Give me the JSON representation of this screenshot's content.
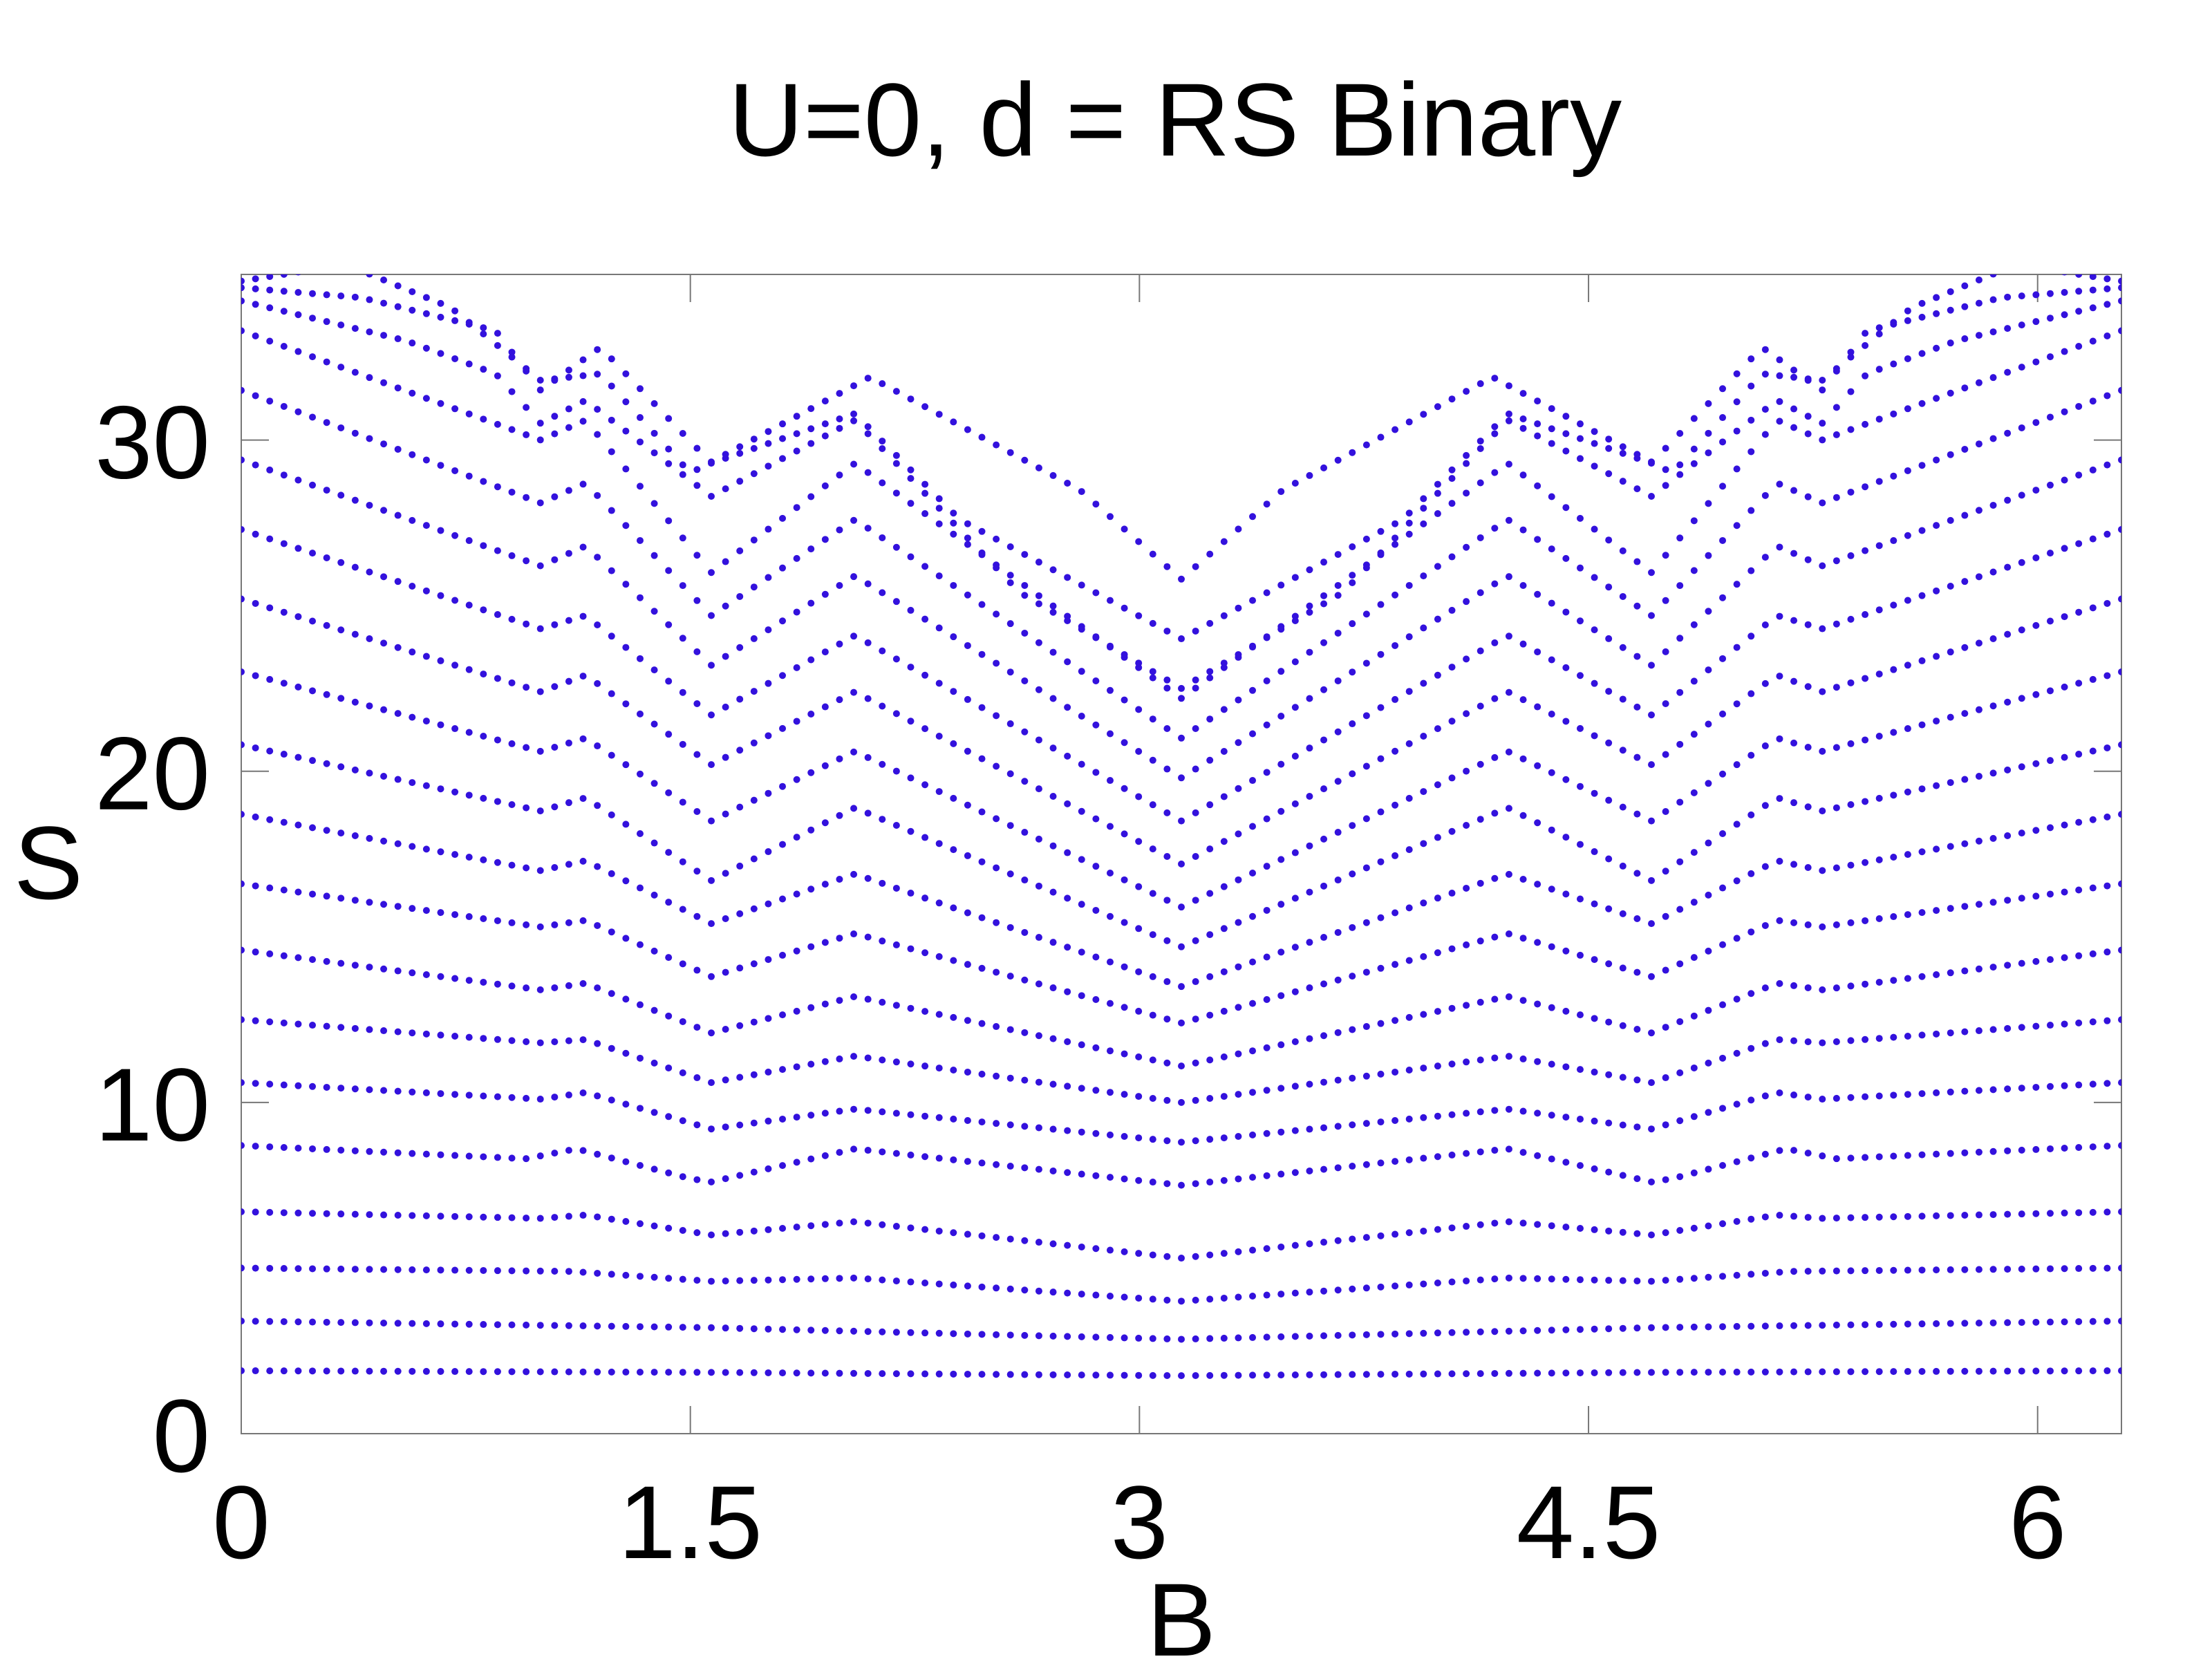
{
  "chart_data": {
    "type": "scatter",
    "title": "U=0, d = RS Binary",
    "xlabel": "B",
    "ylabel": "S",
    "xlim": [
      0,
      6.28
    ],
    "ylim": [
      0,
      35
    ],
    "xticks": [
      0,
      1.5,
      3,
      4.5,
      6
    ],
    "xtick_labels": [
      "0",
      "1.5",
      "3",
      "4.5",
      "6"
    ],
    "yticks": [
      0,
      10,
      20,
      30
    ],
    "ytick_labels": [
      "0",
      "10",
      "20",
      "30"
    ],
    "grid": false,
    "legend": "none",
    "marker_color": "#3311dd",
    "sampling": {
      "x_start": 0,
      "x_end": 6.28,
      "points": 133
    },
    "series": [
      {
        "profile": [
          [
            0,
            1.9
          ],
          [
            1.57,
            1.85
          ],
          [
            3.14,
            1.75
          ],
          [
            4.71,
            1.85
          ],
          [
            6.28,
            1.9
          ]
        ]
      },
      {
        "profile": [
          [
            0,
            3.4
          ],
          [
            1.57,
            3.2
          ],
          [
            3.14,
            2.85
          ],
          [
            4.71,
            3.2
          ],
          [
            6.28,
            3.4
          ]
        ]
      },
      {
        "profile": [
          [
            0,
            5.0
          ],
          [
            1.1,
            4.9
          ],
          [
            1.57,
            4.6
          ],
          [
            2.05,
            4.7
          ],
          [
            3.14,
            4.0
          ],
          [
            4.23,
            4.7
          ],
          [
            4.71,
            4.6
          ],
          [
            5.18,
            4.9
          ],
          [
            6.28,
            5.0
          ]
        ]
      },
      {
        "profile": [
          [
            0,
            6.7
          ],
          [
            1.0,
            6.5
          ],
          [
            1.15,
            6.6
          ],
          [
            1.57,
            6.0
          ],
          [
            2.05,
            6.4
          ],
          [
            3.14,
            5.3
          ],
          [
            4.23,
            6.4
          ],
          [
            4.71,
            6.0
          ],
          [
            5.13,
            6.6
          ],
          [
            5.28,
            6.5
          ],
          [
            6.28,
            6.7
          ]
        ]
      },
      {
        "profile": [
          [
            0,
            8.7
          ],
          [
            0.95,
            8.3
          ],
          [
            1.12,
            8.6
          ],
          [
            1.5,
            7.7
          ],
          [
            1.57,
            7.6
          ],
          [
            2.05,
            8.6
          ],
          [
            3.14,
            7.5
          ],
          [
            4.23,
            8.6
          ],
          [
            4.71,
            7.6
          ],
          [
            4.78,
            7.7
          ],
          [
            5.16,
            8.6
          ],
          [
            5.33,
            8.3
          ],
          [
            6.28,
            8.7
          ]
        ]
      },
      {
        "profile": [
          [
            0,
            10.6
          ],
          [
            1.0,
            10.1
          ],
          [
            1.15,
            10.3
          ],
          [
            1.57,
            9.2
          ],
          [
            2.05,
            9.8
          ],
          [
            3.14,
            8.8
          ],
          [
            4.23,
            9.8
          ],
          [
            4.71,
            9.2
          ],
          [
            5.13,
            10.3
          ],
          [
            5.28,
            10.1
          ],
          [
            6.28,
            10.6
          ]
        ]
      },
      {
        "profile": [
          [
            0,
            12.5
          ],
          [
            1.0,
            11.8
          ],
          [
            1.15,
            11.9
          ],
          [
            1.57,
            10.6
          ],
          [
            2.05,
            11.4
          ],
          [
            3.14,
            10.0
          ],
          [
            4.23,
            11.4
          ],
          [
            4.71,
            10.6
          ],
          [
            5.13,
            11.9
          ],
          [
            5.28,
            11.8
          ],
          [
            6.28,
            12.5
          ]
        ]
      },
      {
        "profile": [
          [
            0,
            14.6
          ],
          [
            1.0,
            13.4
          ],
          [
            1.15,
            13.6
          ],
          [
            1.57,
            12.1
          ],
          [
            2.05,
            13.2
          ],
          [
            3.14,
            11.1
          ],
          [
            4.23,
            13.2
          ],
          [
            4.71,
            12.1
          ],
          [
            5.13,
            13.6
          ],
          [
            5.28,
            13.4
          ],
          [
            6.28,
            14.6
          ]
        ]
      },
      {
        "profile": [
          [
            0,
            16.6
          ],
          [
            1.0,
            15.3
          ],
          [
            1.15,
            15.5
          ],
          [
            1.57,
            13.8
          ],
          [
            2.05,
            15.1
          ],
          [
            3.14,
            12.4
          ],
          [
            4.23,
            15.1
          ],
          [
            4.71,
            13.8
          ],
          [
            5.13,
            15.5
          ],
          [
            5.28,
            15.3
          ],
          [
            6.28,
            16.6
          ]
        ]
      },
      {
        "profile": [
          [
            0,
            18.7
          ],
          [
            1.0,
            17.0
          ],
          [
            1.15,
            17.3
          ],
          [
            1.57,
            15.4
          ],
          [
            2.05,
            16.9
          ],
          [
            3.14,
            13.5
          ],
          [
            4.23,
            16.9
          ],
          [
            4.71,
            15.4
          ],
          [
            5.13,
            17.3
          ],
          [
            5.28,
            17.0
          ],
          [
            6.28,
            18.7
          ]
        ]
      },
      {
        "profile": [
          [
            0,
            20.8
          ],
          [
            1.0,
            18.8
          ],
          [
            1.15,
            19.2
          ],
          [
            1.57,
            16.7
          ],
          [
            2.05,
            18.9
          ],
          [
            3.14,
            14.7
          ],
          [
            4.23,
            18.9
          ],
          [
            4.71,
            16.7
          ],
          [
            5.13,
            19.2
          ],
          [
            5.28,
            18.8
          ],
          [
            6.28,
            20.8
          ]
        ]
      },
      {
        "profile": [
          [
            0,
            23.0
          ],
          [
            1.0,
            20.6
          ],
          [
            1.15,
            21.0
          ],
          [
            1.57,
            18.5
          ],
          [
            2.05,
            20.6
          ],
          [
            3.14,
            15.9
          ],
          [
            4.23,
            20.6
          ],
          [
            4.71,
            18.5
          ],
          [
            5.13,
            21.0
          ],
          [
            5.28,
            20.6
          ],
          [
            6.28,
            23.0
          ]
        ]
      },
      {
        "profile": [
          [
            0,
            25.2
          ],
          [
            1.0,
            22.4
          ],
          [
            1.15,
            22.9
          ],
          [
            1.57,
            20.2
          ],
          [
            2.05,
            22.4
          ],
          [
            3.14,
            17.2
          ],
          [
            4.23,
            22.4
          ],
          [
            4.71,
            20.2
          ],
          [
            5.13,
            22.9
          ],
          [
            5.28,
            22.4
          ],
          [
            6.28,
            25.2
          ]
        ]
      },
      {
        "profile": [
          [
            0,
            27.3
          ],
          [
            1.0,
            24.3
          ],
          [
            1.15,
            24.7
          ],
          [
            1.57,
            21.7
          ],
          [
            2.05,
            24.1
          ],
          [
            3.14,
            18.5
          ],
          [
            4.23,
            24.1
          ],
          [
            4.71,
            21.7
          ],
          [
            5.13,
            24.7
          ],
          [
            5.28,
            24.3
          ],
          [
            6.28,
            27.3
          ]
        ]
      },
      {
        "profile": [
          [
            0,
            29.4
          ],
          [
            1.0,
            26.2
          ],
          [
            1.15,
            26.8
          ],
          [
            1.57,
            23.2
          ],
          [
            2.05,
            25.9
          ],
          [
            3.14,
            19.8
          ],
          [
            4.23,
            25.9
          ],
          [
            4.71,
            23.2
          ],
          [
            5.13,
            26.8
          ],
          [
            5.28,
            26.2
          ],
          [
            6.28,
            29.4
          ]
        ]
      },
      {
        "profile": [
          [
            0,
            31.5
          ],
          [
            1.0,
            28.1
          ],
          [
            1.15,
            28.7
          ],
          [
            1.57,
            24.7
          ],
          [
            2.05,
            27.6
          ],
          [
            3.14,
            21.0
          ],
          [
            4.23,
            27.6
          ],
          [
            4.71,
            24.7
          ],
          [
            5.13,
            28.7
          ],
          [
            5.28,
            28.1
          ],
          [
            6.28,
            31.5
          ]
        ]
      },
      {
        "profile": [
          [
            0,
            33.3
          ],
          [
            1.0,
            30.0
          ],
          [
            1.15,
            30.6
          ],
          [
            1.57,
            26.0
          ],
          [
            2.05,
            29.3
          ],
          [
            3.14,
            22.2
          ],
          [
            4.23,
            29.3
          ],
          [
            4.71,
            26.0
          ],
          [
            5.13,
            30.6
          ],
          [
            5.28,
            30.0
          ],
          [
            6.28,
            33.3
          ]
        ]
      },
      {
        "profile": [
          [
            0,
            34.2
          ],
          [
            0.55,
            33.0
          ],
          [
            0.85,
            32.0
          ],
          [
            1.0,
            30.5
          ],
          [
            1.15,
            31.2
          ],
          [
            1.57,
            28.3
          ],
          [
            2.05,
            30.6
          ],
          [
            2.6,
            25.4
          ],
          [
            3.14,
            22.5
          ],
          [
            3.68,
            25.4
          ],
          [
            4.23,
            30.6
          ],
          [
            4.71,
            28.3
          ],
          [
            5.13,
            31.2
          ],
          [
            5.28,
            30.5
          ],
          [
            5.43,
            32.0
          ],
          [
            5.73,
            33.0
          ],
          [
            6.28,
            34.2
          ]
        ]
      },
      {
        "profile": [
          [
            0,
            34.6
          ],
          [
            0.4,
            34.3
          ],
          [
            0.85,
            33.3
          ],
          [
            1.0,
            31.5
          ],
          [
            1.2,
            32.8
          ],
          [
            1.57,
            29.3
          ],
          [
            2.05,
            30.8
          ],
          [
            2.4,
            27.6
          ],
          [
            3.14,
            24.0
          ],
          [
            3.88,
            27.6
          ],
          [
            4.23,
            30.8
          ],
          [
            4.71,
            29.3
          ],
          [
            5.08,
            32.8
          ],
          [
            5.28,
            31.5
          ],
          [
            5.43,
            33.3
          ],
          [
            5.88,
            34.3
          ],
          [
            6.28,
            34.6
          ]
        ]
      },
      {
        "profile": [
          [
            0,
            34.8
          ],
          [
            0.35,
            35.3
          ],
          [
            0.7,
            34.0
          ],
          [
            1.0,
            31.8
          ],
          [
            1.2,
            32.0
          ],
          [
            1.5,
            29.0
          ],
          [
            2.1,
            31.9
          ],
          [
            2.8,
            28.5
          ],
          [
            3.14,
            25.8
          ],
          [
            3.48,
            28.5
          ],
          [
            4.18,
            31.9
          ],
          [
            4.78,
            29.0
          ],
          [
            5.08,
            32.0
          ],
          [
            5.28,
            31.8
          ],
          [
            5.58,
            34.0
          ],
          [
            5.93,
            35.3
          ],
          [
            6.28,
            34.8
          ]
        ]
      }
    ]
  }
}
